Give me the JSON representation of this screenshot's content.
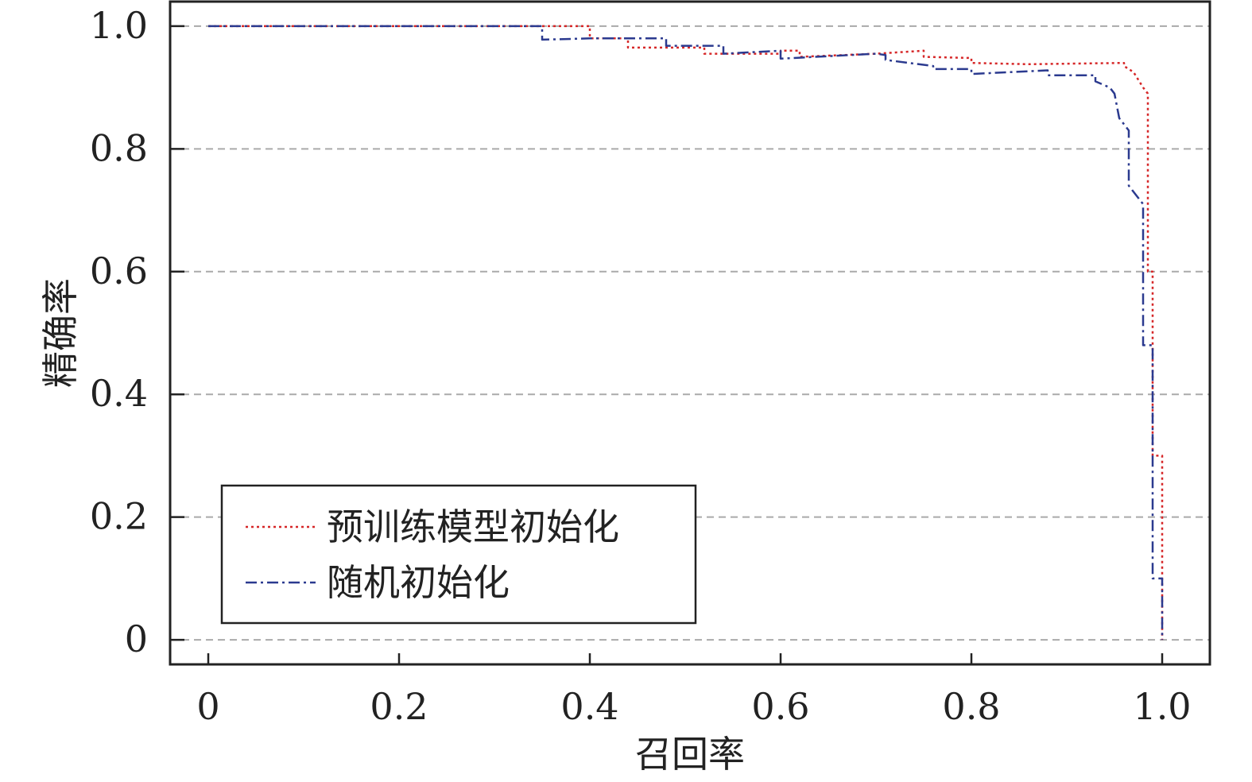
{
  "chart_data": {
    "type": "line",
    "xlabel": "召回率",
    "ylabel": "精确率",
    "xlim": [
      -0.04,
      1.05
    ],
    "ylim": [
      -0.04,
      1.04
    ],
    "x_ticks": [
      0,
      0.2,
      0.4,
      0.6,
      0.8,
      1.0
    ],
    "x_tick_labels": [
      "0",
      "0.2",
      "0.4",
      "0.6",
      "0.8",
      "1.0"
    ],
    "y_ticks": [
      0,
      0.2,
      0.4,
      0.6,
      0.8,
      1.0
    ],
    "y_tick_labels": [
      "0",
      "0.2",
      "0.4",
      "0.6",
      "0.8",
      "1.0"
    ],
    "grid": "horizontal dashed",
    "legend_position": "bottom-left",
    "series": [
      {
        "name": "预训练模型初始化",
        "color": "#d62728",
        "style": "dotted",
        "points": [
          [
            0.0,
            1.0
          ],
          [
            0.4,
            1.0
          ],
          [
            0.4,
            0.98
          ],
          [
            0.44,
            0.98
          ],
          [
            0.44,
            0.965
          ],
          [
            0.52,
            0.965
          ],
          [
            0.52,
            0.955
          ],
          [
            0.6,
            0.955
          ],
          [
            0.6,
            0.96
          ],
          [
            0.62,
            0.96
          ],
          [
            0.62,
            0.95
          ],
          [
            0.7,
            0.955
          ],
          [
            0.75,
            0.96
          ],
          [
            0.75,
            0.95
          ],
          [
            0.8,
            0.948
          ],
          [
            0.8,
            0.94
          ],
          [
            0.86,
            0.938
          ],
          [
            0.96,
            0.94
          ],
          [
            0.96,
            0.935
          ],
          [
            0.97,
            0.925
          ],
          [
            0.98,
            0.9
          ],
          [
            0.985,
            0.89
          ],
          [
            0.985,
            0.6
          ],
          [
            0.99,
            0.6
          ],
          [
            0.99,
            0.3
          ],
          [
            1.0,
            0.3
          ],
          [
            1.0,
            0.0
          ]
        ]
      },
      {
        "name": "随机初始化",
        "color": "#2b3a8f",
        "style": "dashdot",
        "points": [
          [
            0.0,
            1.0
          ],
          [
            0.35,
            1.0
          ],
          [
            0.35,
            0.978
          ],
          [
            0.4,
            0.98
          ],
          [
            0.48,
            0.98
          ],
          [
            0.48,
            0.968
          ],
          [
            0.54,
            0.968
          ],
          [
            0.54,
            0.955
          ],
          [
            0.6,
            0.96
          ],
          [
            0.6,
            0.947
          ],
          [
            0.7,
            0.955
          ],
          [
            0.71,
            0.953
          ],
          [
            0.71,
            0.945
          ],
          [
            0.76,
            0.935
          ],
          [
            0.76,
            0.93
          ],
          [
            0.8,
            0.93
          ],
          [
            0.8,
            0.922
          ],
          [
            0.88,
            0.928
          ],
          [
            0.88,
            0.92
          ],
          [
            0.93,
            0.92
          ],
          [
            0.93,
            0.91
          ],
          [
            0.945,
            0.9
          ],
          [
            0.95,
            0.89
          ],
          [
            0.955,
            0.85
          ],
          [
            0.96,
            0.84
          ],
          [
            0.965,
            0.83
          ],
          [
            0.965,
            0.74
          ],
          [
            0.975,
            0.72
          ],
          [
            0.98,
            0.71
          ],
          [
            0.98,
            0.48
          ],
          [
            0.99,
            0.48
          ],
          [
            0.99,
            0.1
          ],
          [
            1.0,
            0.1
          ],
          [
            1.0,
            0.0
          ]
        ]
      }
    ]
  }
}
